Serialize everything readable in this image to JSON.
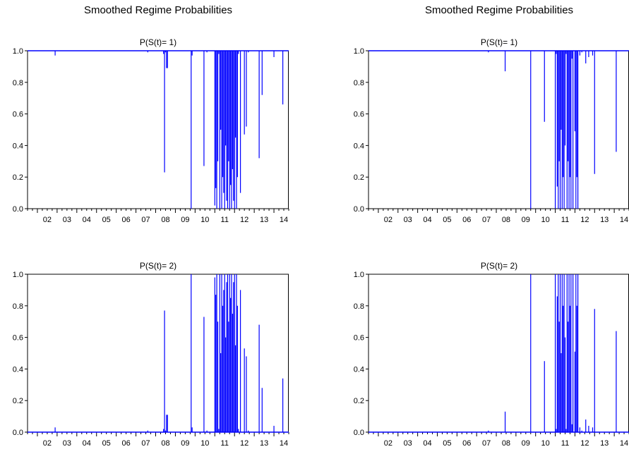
{
  "figure": {
    "left_title": "Smoothed Regime Probabilities",
    "right_title": "Smoothed Regime Probabilities"
  },
  "colors": {
    "series": "#0000ff",
    "axis": "#000000"
  },
  "chart_data": [
    {
      "type": "line",
      "title": "P(S(t)= 1)",
      "x_ticks": [
        "02",
        "03",
        "04",
        "05",
        "06",
        "07",
        "08",
        "09",
        "10",
        "11",
        "12",
        "13",
        "14"
      ],
      "y_ticks": [
        "0.0",
        "0.2",
        "0.4",
        "0.6",
        "0.8",
        "1.0"
      ],
      "xlim": [
        2001.5,
        2014.75
      ],
      "ylim": [
        0,
        1
      ],
      "series": [
        {
          "baseline": 1.0,
          "x": [
            2002.9,
            2007.6,
            2008.4,
            2008.45,
            2008.5,
            2008.55,
            2008.6,
            2009.8,
            2009.85,
            2010.45,
            2010.6,
            2011.0,
            2011.05,
            2011.1,
            2011.15,
            2011.2,
            2011.25,
            2011.3,
            2011.35,
            2011.4,
            2011.45,
            2011.5,
            2011.55,
            2011.6,
            2011.65,
            2011.7,
            2011.75,
            2011.8,
            2011.85,
            2011.9,
            2011.95,
            2012.0,
            2012.05,
            2012.1,
            2012.15,
            2012.2,
            2012.3,
            2012.5,
            2012.6,
            2012.7,
            2013.25,
            2013.4,
            2014.0,
            2014.45
          ],
          "y": [
            0.97,
            0.99,
            0.98,
            0.23,
            0.99,
            0.89,
            0.89,
            0.0,
            0.97,
            0.27,
            0.99,
            0.02,
            0.13,
            0.0,
            0.3,
            0.98,
            0.0,
            0.5,
            0.0,
            0.2,
            0.1,
            0.0,
            0.4,
            0.05,
            0.0,
            0.3,
            0.0,
            0.15,
            0.0,
            0.25,
            0.05,
            0.0,
            0.45,
            0.0,
            0.2,
            0.98,
            0.1,
            0.47,
            0.52,
            0.99,
            0.32,
            0.72,
            0.96,
            0.66
          ]
        }
      ]
    },
    {
      "type": "line",
      "title": "P(S(t)= 2)",
      "x_ticks": [
        "02",
        "03",
        "04",
        "05",
        "06",
        "07",
        "08",
        "09",
        "10",
        "11",
        "12",
        "13",
        "14"
      ],
      "y_ticks": [
        "0.0",
        "0.2",
        "0.4",
        "0.6",
        "0.8",
        "1.0"
      ],
      "xlim": [
        2001.5,
        2014.75
      ],
      "ylim": [
        0,
        1
      ],
      "series": [
        {
          "baseline": 0.0,
          "x": [
            2002.9,
            2007.6,
            2008.4,
            2008.45,
            2008.5,
            2008.55,
            2008.6,
            2009.8,
            2009.85,
            2010.45,
            2010.6,
            2011.0,
            2011.05,
            2011.1,
            2011.15,
            2011.2,
            2011.25,
            2011.3,
            2011.35,
            2011.4,
            2011.45,
            2011.5,
            2011.55,
            2011.6,
            2011.65,
            2011.7,
            2011.75,
            2011.8,
            2011.85,
            2011.9,
            2011.95,
            2012.0,
            2012.05,
            2012.1,
            2012.15,
            2012.2,
            2012.3,
            2012.5,
            2012.6,
            2012.7,
            2013.25,
            2013.4,
            2014.0,
            2014.45
          ],
          "y": [
            0.03,
            0.01,
            0.02,
            0.77,
            0.01,
            0.11,
            0.11,
            1.0,
            0.03,
            0.73,
            0.01,
            0.98,
            0.87,
            1.0,
            0.7,
            0.02,
            1.0,
            0.5,
            1.0,
            0.8,
            0.9,
            1.0,
            0.6,
            0.95,
            1.0,
            0.7,
            1.0,
            0.85,
            1.0,
            0.75,
            0.95,
            1.0,
            0.55,
            1.0,
            0.8,
            0.02,
            0.9,
            0.53,
            0.48,
            0.01,
            0.68,
            0.28,
            0.04,
            0.34
          ]
        }
      ]
    },
    {
      "type": "line",
      "title": "P(S(t)= 1)",
      "x_ticks": [
        "02",
        "03",
        "04",
        "05",
        "06",
        "07",
        "08",
        "09",
        "10",
        "11",
        "12",
        "13",
        "14"
      ],
      "y_ticks": [
        "0.0",
        "0.2",
        "0.4",
        "0.6",
        "0.8",
        "1.0"
      ],
      "xlim": [
        2001.5,
        2014.75
      ],
      "ylim": [
        0,
        1
      ],
      "series": [
        {
          "baseline": 1.0,
          "x": [
            2007.6,
            2008.45,
            2009.75,
            2010.45,
            2011.0,
            2011.05,
            2011.1,
            2011.15,
            2011.2,
            2011.25,
            2011.3,
            2011.35,
            2011.4,
            2011.45,
            2011.5,
            2011.55,
            2011.6,
            2011.65,
            2011.7,
            2011.75,
            2011.8,
            2011.85,
            2011.9,
            2012.0,
            2012.05,
            2012.1,
            2012.15,
            2012.25,
            2012.35,
            2012.55,
            2012.7,
            2012.9,
            2013.0,
            2014.1
          ],
          "y": [
            0.99,
            0.87,
            0.0,
            0.55,
            0.0,
            0.98,
            0.14,
            0.0,
            0.3,
            0.0,
            0.5,
            0.0,
            0.2,
            0.0,
            0.4,
            0.98,
            0.0,
            0.3,
            0.0,
            0.2,
            0.0,
            0.95,
            0.0,
            0.49,
            0.0,
            0.2,
            0.0,
            0.97,
            0.99,
            0.92,
            0.96,
            0.97,
            0.22,
            0.36
          ]
        }
      ]
    },
    {
      "type": "line",
      "title": "P(S(t)= 2)",
      "x_ticks": [
        "02",
        "03",
        "04",
        "05",
        "06",
        "07",
        "08",
        "09",
        "10",
        "11",
        "12",
        "13",
        "14"
      ],
      "y_ticks": [
        "0.0",
        "0.2",
        "0.4",
        "0.6",
        "0.8",
        "1.0"
      ],
      "xlim": [
        2001.5,
        2014.75
      ],
      "ylim": [
        0,
        1
      ],
      "series": [
        {
          "baseline": 0.0,
          "x": [
            2007.6,
            2008.45,
            2009.75,
            2010.45,
            2011.0,
            2011.05,
            2011.1,
            2011.15,
            2011.2,
            2011.25,
            2011.3,
            2011.35,
            2011.4,
            2011.45,
            2011.5,
            2011.55,
            2011.6,
            2011.65,
            2011.7,
            2011.75,
            2011.8,
            2011.85,
            2011.9,
            2012.0,
            2012.05,
            2012.1,
            2012.15,
            2012.25,
            2012.35,
            2012.55,
            2012.7,
            2012.9,
            2013.0,
            2014.1
          ],
          "y": [
            0.01,
            0.13,
            1.0,
            0.45,
            1.0,
            0.02,
            0.86,
            1.0,
            0.7,
            1.0,
            0.5,
            1.0,
            0.8,
            1.0,
            0.6,
            0.02,
            1.0,
            0.7,
            1.0,
            0.8,
            1.0,
            0.05,
            1.0,
            0.51,
            1.0,
            0.8,
            1.0,
            0.03,
            0.01,
            0.08,
            0.04,
            0.03,
            0.78,
            0.64
          ]
        }
      ]
    }
  ]
}
